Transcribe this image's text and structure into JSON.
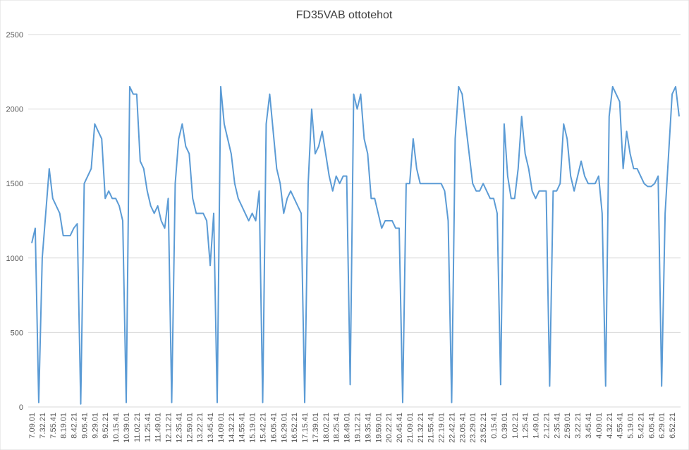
{
  "chart_data": {
    "type": "line",
    "title": "FD35VAB ottotehot",
    "categories": [
      "7.09.01",
      null,
      null,
      "7.32.21",
      null,
      null,
      "7.55.41",
      null,
      null,
      "8.19.01",
      null,
      null,
      "8.42.21",
      null,
      null,
      "9.05.41",
      null,
      null,
      "9.29.01",
      null,
      null,
      "9.52.21",
      null,
      null,
      "10.15.41",
      null,
      null,
      "10.39.01",
      null,
      null,
      "11.02.21",
      null,
      null,
      "11.25.41",
      null,
      null,
      "11.49.01",
      null,
      null,
      "12.12.21",
      null,
      null,
      "12.35.41",
      null,
      null,
      "12.59.01",
      null,
      null,
      "13.22.21",
      null,
      null,
      "13.45.41",
      null,
      null,
      "14.09.01",
      null,
      null,
      "14.32.21",
      null,
      null,
      "14.55.41",
      null,
      null,
      "15.19.01",
      null,
      null,
      "15.42.21",
      null,
      null,
      "16.05.41",
      null,
      null,
      "16.29.01",
      null,
      null,
      "16.52.21",
      null,
      null,
      "17.15.41",
      null,
      null,
      "17.39.01",
      null,
      null,
      "18.02.21",
      null,
      null,
      "18.25.41",
      null,
      null,
      "18.49.01",
      null,
      null,
      "19.12.21",
      null,
      null,
      "19.35.41",
      null,
      null,
      "19.59.01",
      null,
      null,
      "20.22.21",
      null,
      null,
      "20.45.41",
      null,
      null,
      "21.09.01",
      null,
      null,
      "21.32.21",
      null,
      null,
      "21.55.41",
      null,
      null,
      "22.19.01",
      null,
      null,
      "22.42.21",
      null,
      null,
      "23.05.41",
      null,
      null,
      "23.29.01",
      null,
      null,
      "23.52.21",
      null,
      null,
      "0.15.41",
      null,
      null,
      "0.39.01",
      null,
      null,
      "1.02.21",
      null,
      null,
      "1.25.41",
      null,
      null,
      "1.49.01",
      null,
      null,
      "2.12.21",
      null,
      null,
      "2.35.41",
      null,
      null,
      "2.59.01",
      null,
      null,
      "3.22.21",
      null,
      null,
      "3.45.41",
      null,
      null,
      "4.09.01",
      null,
      null,
      "4.32.21",
      null,
      null,
      "4.55.41",
      null,
      null,
      "5.19.01",
      null,
      null,
      "5.42.21",
      null,
      null,
      "6.05.41",
      null,
      null,
      "6.29.01",
      null,
      null,
      "6.52.21",
      null,
      null
    ],
    "values": [
      1100,
      1200,
      30,
      1000,
      1300,
      1600,
      1400,
      1350,
      1300,
      1150,
      1150,
      1150,
      1200,
      1230,
      20,
      1500,
      1550,
      1600,
      1900,
      1850,
      1800,
      1400,
      1450,
      1400,
      1400,
      1350,
      1250,
      30,
      2150,
      2100,
      2100,
      1650,
      1600,
      1450,
      1350,
      1300,
      1350,
      1250,
      1200,
      1400,
      30,
      1500,
      1800,
      1900,
      1750,
      1700,
      1400,
      1300,
      1300,
      1300,
      1250,
      950,
      1300,
      30,
      2150,
      1900,
      1800,
      1700,
      1500,
      1400,
      1350,
      1300,
      1250,
      1300,
      1250,
      1450,
      30,
      1900,
      2100,
      1850,
      1600,
      1500,
      1300,
      1400,
      1450,
      1400,
      1350,
      1300,
      30,
      1500,
      2000,
      1700,
      1750,
      1850,
      1700,
      1550,
      1450,
      1550,
      1500,
      1550,
      1550,
      150,
      2100,
      2000,
      2100,
      1800,
      1700,
      1400,
      1400,
      1300,
      1200,
      1250,
      1250,
      1250,
      1200,
      1200,
      30,
      1500,
      1500,
      1800,
      1600,
      1500,
      1500,
      1500,
      1500,
      1500,
      1500,
      1500,
      1450,
      1250,
      30,
      1800,
      2150,
      2100,
      1900,
      1700,
      1500,
      1450,
      1450,
      1500,
      1450,
      1400,
      1400,
      1300,
      150,
      1900,
      1550,
      1400,
      1400,
      1600,
      1950,
      1700,
      1600,
      1450,
      1400,
      1450,
      1450,
      1450,
      140,
      1450,
      1450,
      1500,
      1900,
      1800,
      1550,
      1450,
      1550,
      1650,
      1550,
      1500,
      1500,
      1500,
      1550,
      1300,
      140,
      1950,
      2150,
      2100,
      2050,
      1600,
      1850,
      1700,
      1600,
      1600,
      1550,
      1500,
      1480,
      1480,
      1500,
      1550,
      140,
      1300,
      1700,
      2100,
      2150,
      1950
    ],
    "color": "#5b9bd5",
    "ylim": [
      0,
      2500
    ],
    "yticks": [
      0,
      500,
      1000,
      1500,
      2000,
      2500
    ],
    "grid": true
  }
}
